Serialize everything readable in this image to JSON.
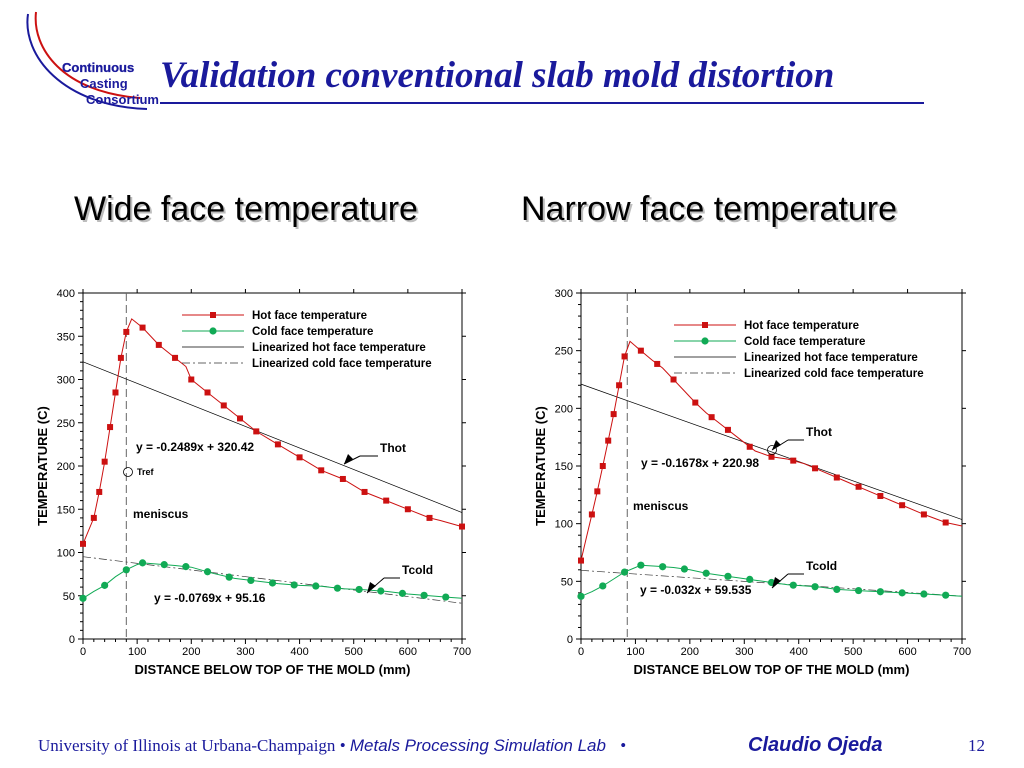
{
  "logo": {
    "lines": [
      "Continuous",
      "Casting",
      "Consortium"
    ]
  },
  "slide": {
    "title": "Validation conventional slab mold distortion",
    "subtitle_left": "Wide face temperature",
    "subtitle_right": "Narrow face temperature",
    "page_number": "12"
  },
  "footer": {
    "university": "University of Illinois at Urbana-Champaign",
    "separator": "•",
    "lab": "Metals Processing Simulation Lab",
    "author": "Claudio Ojeda"
  },
  "colors": {
    "title": "#1a1a9c",
    "hot": "#cc1111",
    "cold": "#11aa55",
    "logo": "#cc1111"
  },
  "chart_data": [
    {
      "type": "line",
      "xlabel": "DISTANCE BELOW TOP OF THE MOLD (mm)",
      "ylabel": "TEMPERATURE (C)",
      "xlim": [
        0,
        700
      ],
      "ylim": [
        0,
        400
      ],
      "xticks": [
        0,
        100,
        200,
        300,
        400,
        500,
        600,
        700
      ],
      "yticks": [
        0,
        50,
        100,
        150,
        200,
        250,
        300,
        350,
        400
      ],
      "legend": [
        "Hot face temperature",
        "Cold face temperature",
        "Linearized hot face temperature",
        "Linearized cold face temperature"
      ],
      "legend_position": "top-right",
      "series": [
        {
          "name": "Hot face temperature",
          "x": [
            0,
            20,
            30,
            40,
            50,
            60,
            70,
            80,
            90,
            110,
            140,
            170,
            190,
            200,
            230,
            260,
            290,
            320,
            360,
            400,
            440,
            480,
            520,
            560,
            600,
            640,
            660,
            700
          ],
          "y": [
            110,
            140,
            170,
            205,
            245,
            285,
            325,
            355,
            370,
            360,
            340,
            325,
            315,
            300,
            285,
            270,
            255,
            240,
            225,
            210,
            195,
            185,
            170,
            160,
            150,
            140,
            137,
            130
          ],
          "marked_x": [
            0,
            20,
            30,
            40,
            50,
            60,
            70,
            80,
            110,
            140,
            170,
            200,
            230,
            260,
            290,
            320,
            360,
            400,
            440,
            480,
            520,
            560,
            600,
            640,
            700
          ]
        },
        {
          "name": "Cold face temperature",
          "x": [
            0,
            20,
            40,
            60,
            80,
            100,
            110,
            130,
            150,
            170,
            200,
            240,
            280,
            320,
            360,
            400,
            440,
            480,
            520,
            560,
            600,
            640,
            680,
            700
          ],
          "y": [
            47,
            55,
            62,
            72,
            80,
            86,
            88,
            87,
            86,
            85,
            83,
            76,
            70,
            67,
            64,
            62,
            61,
            58,
            57,
            55,
            52,
            50,
            48,
            47
          ],
          "marked_x": [
            0,
            40,
            80,
            110,
            150,
            190,
            230,
            270,
            310,
            350,
            390,
            430,
            470,
            510,
            550,
            590,
            630,
            670
          ]
        },
        {
          "name": "Linearized hot face temperature",
          "slope": -0.2489,
          "intercept": 320.42
        },
        {
          "name": "Linearized cold face temperature",
          "slope": -0.0769,
          "intercept": 95.16
        }
      ],
      "annotations": {
        "hot_equation": "y = -0.2489x + 320.42",
        "cold_equation": "y = -0.0769x + 95.16",
        "hot_label": "Thot",
        "cold_label": "Tcold",
        "meniscus": "meniscus",
        "tref": "Tref",
        "meniscus_x": 80
      }
    },
    {
      "type": "line",
      "xlabel": "DISTANCE BELOW TOP OF THE MOLD (mm)",
      "ylabel": "TEMPERATURE (C)",
      "xlim": [
        0,
        700
      ],
      "ylim": [
        0,
        300
      ],
      "xticks": [
        0,
        100,
        200,
        300,
        400,
        500,
        600,
        700
      ],
      "yticks": [
        0,
        50,
        100,
        150,
        200,
        250,
        300
      ],
      "legend": [
        "Hot face temperature",
        "Cold face temperature",
        "Linearized hot face temperature",
        "Linearized cold face temperature"
      ],
      "legend_position": "top-right",
      "series": [
        {
          "name": "Hot face temperature",
          "x": [
            0,
            10,
            20,
            30,
            40,
            50,
            60,
            70,
            80,
            90,
            110,
            130,
            150,
            170,
            190,
            210,
            230,
            260,
            290,
            320,
            350,
            380,
            410,
            440,
            470,
            500,
            530,
            560,
            600,
            630,
            670,
            700
          ],
          "y": [
            68,
            88,
            108,
            128,
            150,
            172,
            195,
            220,
            245,
            258,
            250,
            242,
            235,
            225,
            215,
            205,
            196,
            185,
            174,
            163,
            158,
            156,
            152,
            146,
            140,
            134,
            128,
            122,
            114,
            108,
            101,
            98
          ],
          "marked_x": [
            0,
            20,
            30,
            40,
            50,
            60,
            70,
            80,
            110,
            140,
            170,
            210,
            240,
            270,
            310,
            350,
            390,
            430,
            470,
            510,
            550,
            590,
            630,
            670
          ]
        },
        {
          "name": "Cold face temperature",
          "x": [
            0,
            20,
            40,
            60,
            80,
            100,
            110,
            140,
            170,
            200,
            230,
            260,
            290,
            320,
            350,
            380,
            410,
            440,
            470,
            510,
            550,
            590,
            630,
            670,
            700
          ],
          "y": [
            37,
            41,
            46,
            52,
            58,
            62,
            64,
            63,
            62,
            60,
            57,
            55,
            53,
            51,
            49,
            47,
            46,
            45,
            43,
            42,
            41,
            40,
            39,
            38,
            37
          ],
          "marked_x": [
            0,
            40,
            80,
            110,
            150,
            190,
            230,
            270,
            310,
            350,
            390,
            430,
            470,
            510,
            550,
            590,
            630,
            670
          ]
        },
        {
          "name": "Linearized hot face temperature",
          "slope": -0.1678,
          "intercept": 220.98
        },
        {
          "name": "Linearized cold face temperature",
          "slope": -0.032,
          "intercept": 59.535
        }
      ],
      "annotations": {
        "hot_equation": "y = -0.1678x + 220.98",
        "cold_equation": "y = -0.032x + 59.535",
        "hot_label": "Thot",
        "cold_label": "Tcold",
        "meniscus": "meniscus",
        "meniscus_x": 85
      }
    }
  ]
}
